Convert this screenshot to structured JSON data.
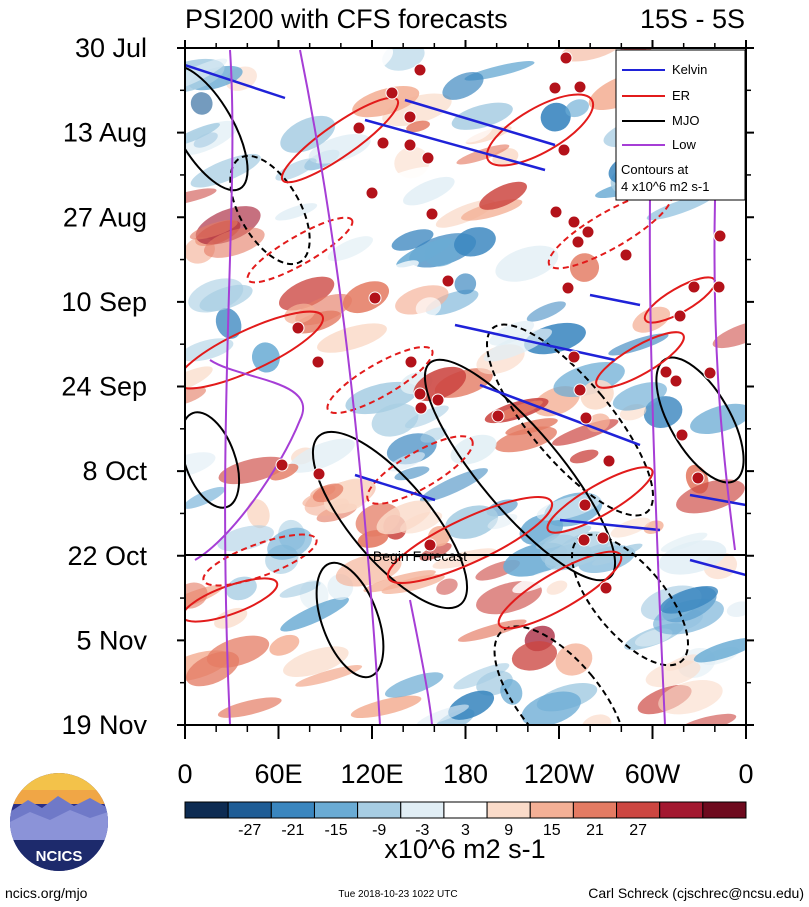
{
  "header": {
    "title": "PSI200 with CFS forecasts",
    "region": "15S - 5S"
  },
  "chart_data": {
    "type": "heatmap",
    "title": "PSI200 with CFS forecasts",
    "subtitle": "15S - 5S",
    "y_ticks": [
      "30 Jul",
      "13 Aug",
      "27 Aug",
      "10 Sep",
      "24 Sep",
      "8 Oct",
      "22 Oct",
      "5 Nov",
      "19 Nov"
    ],
    "x_ticks": [
      "0",
      "60E",
      "120E",
      "180",
      "120W",
      "60W",
      "0"
    ],
    "forecast_marker": {
      "date": "22 Oct",
      "label": "Begin Forecast"
    },
    "legend": {
      "placement": "top-right",
      "entries": [
        {
          "name": "Kelvin",
          "color": "#1f22d8",
          "style": "solid"
        },
        {
          "name": "ER",
          "color": "#e21b1b",
          "style": "solid"
        },
        {
          "name": "MJO",
          "color": "#000000",
          "style": "solid"
        },
        {
          "name": "Low",
          "color": "#a63ed6",
          "style": "solid"
        }
      ],
      "note_line1": "Contours at",
      "note_line2": "4 x10^6 m2 s-1"
    },
    "colorbar": {
      "labels": [
        "-27",
        "-21",
        "-15",
        "-9",
        "-3",
        "3",
        "9",
        "15",
        "21",
        "27"
      ],
      "colors": [
        "#0d2b52",
        "#1f5d96",
        "#3a86bf",
        "#6aabd4",
        "#a7cde3",
        "#e1eef5",
        "#ffffff",
        "#fadbc9",
        "#f4b096",
        "#e47b63",
        "#cc4641",
        "#a31830",
        "#6e0a1e"
      ],
      "units": "x10^6 m2 s-1"
    }
  },
  "footer": {
    "url": "ncics.org/mjo",
    "timestamp": "Tue 2018-10-23 1022 UTC",
    "author": "Carl Schreck (cjschrec@ncsu.edu)",
    "logo_text": "NCICS"
  }
}
